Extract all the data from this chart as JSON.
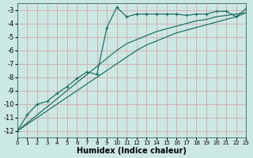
{
  "xlabel": "Humidex (Indice chaleur)",
  "bg_color": "#cce8e3",
  "grid_color": "#d4a8a8",
  "line_color": "#1a6b5e",
  "xlim": [
    0,
    23
  ],
  "ylim": [
    -12.5,
    -2.5
  ],
  "yticks": [
    -12,
    -11,
    -10,
    -9,
    -8,
    -7,
    -6,
    -5,
    -4,
    -3
  ],
  "xticks": [
    0,
    1,
    2,
    3,
    4,
    5,
    6,
    7,
    8,
    9,
    10,
    11,
    12,
    13,
    14,
    15,
    16,
    17,
    18,
    19,
    20,
    21,
    22,
    23
  ],
  "zigzag_x": [
    0,
    1,
    2,
    3,
    4,
    5,
    6,
    7,
    8,
    9,
    10,
    11,
    12,
    13,
    14,
    15,
    16,
    17,
    18,
    19,
    20,
    21,
    22,
    23
  ],
  "zigzag_y": [
    -12,
    -10.8,
    -10.0,
    -9.8,
    -9.2,
    -8.7,
    -8.1,
    -7.6,
    -7.8,
    -4.3,
    -2.8,
    -3.5,
    -3.3,
    -3.3,
    -3.3,
    -3.3,
    -3.3,
    -3.4,
    -3.3,
    -3.3,
    -3.1,
    -3.1,
    -3.5,
    -2.9
  ],
  "diag1_x": [
    0,
    1,
    2,
    3,
    4,
    5,
    6,
    7,
    8,
    9,
    10,
    11,
    12,
    13,
    14,
    15,
    16,
    17,
    18,
    19,
    20,
    21,
    22,
    23
  ],
  "diag1_y": [
    -12,
    -11.4,
    -10.8,
    -10.2,
    -9.6,
    -9.0,
    -8.4,
    -7.8,
    -7.2,
    -6.6,
    -6.0,
    -5.5,
    -5.2,
    -4.9,
    -4.6,
    -4.4,
    -4.2,
    -4.0,
    -3.8,
    -3.7,
    -3.5,
    -3.4,
    -3.3,
    -3.2
  ],
  "diag2_x": [
    0,
    1,
    2,
    3,
    4,
    5,
    6,
    7,
    8,
    9,
    10,
    11,
    12,
    13,
    14,
    15,
    16,
    17,
    18,
    19,
    20,
    21,
    22,
    23
  ],
  "diag2_y": [
    -12,
    -11.5,
    -11.0,
    -10.5,
    -10.0,
    -9.5,
    -9.0,
    -8.5,
    -8.0,
    -7.5,
    -7.0,
    -6.5,
    -6.0,
    -5.6,
    -5.3,
    -5.0,
    -4.7,
    -4.5,
    -4.3,
    -4.1,
    -3.9,
    -3.7,
    -3.5,
    -3.2
  ]
}
